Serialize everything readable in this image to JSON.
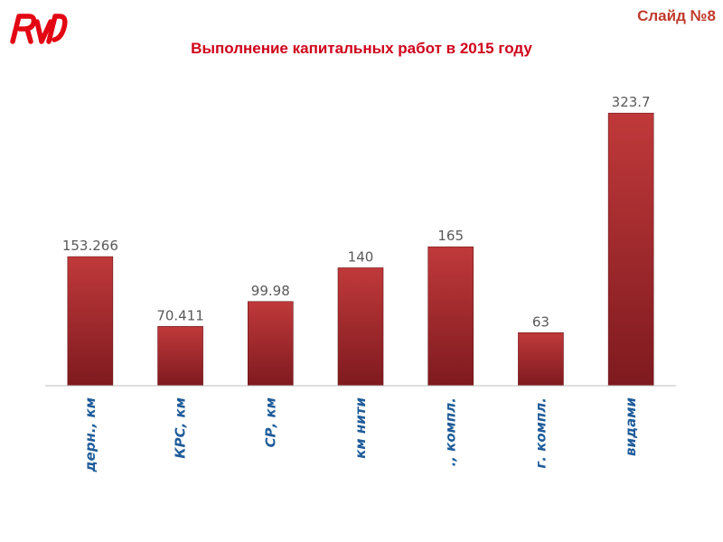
{
  "header": {
    "slide_number": "Слайд №8",
    "logo": "РЖД",
    "title": "Выполнение капитальных работ в 2015 году"
  },
  "colors": {
    "bar_top": "#c0393a",
    "bar_bottom": "#7e1a1f",
    "category_text": "#1f5c9a",
    "title_text": "#d0021b"
  },
  "chart_data": {
    "type": "bar",
    "title": "Выполнение капитальных работ в 2015 году",
    "categories": [
      "дерн., км",
      "КРС, км",
      "СР, км",
      "км нити",
      "., компл.",
      "г. компл.",
      "видами"
    ],
    "values": [
      153.266,
      70.411,
      99.98,
      140,
      165,
      63,
      323.7
    ],
    "value_labels": [
      "153.266",
      "70.411",
      "99.98",
      "140",
      "165",
      "63",
      "323.7"
    ],
    "ylim": [
      0,
      340
    ],
    "grid": false,
    "legend": "none"
  }
}
